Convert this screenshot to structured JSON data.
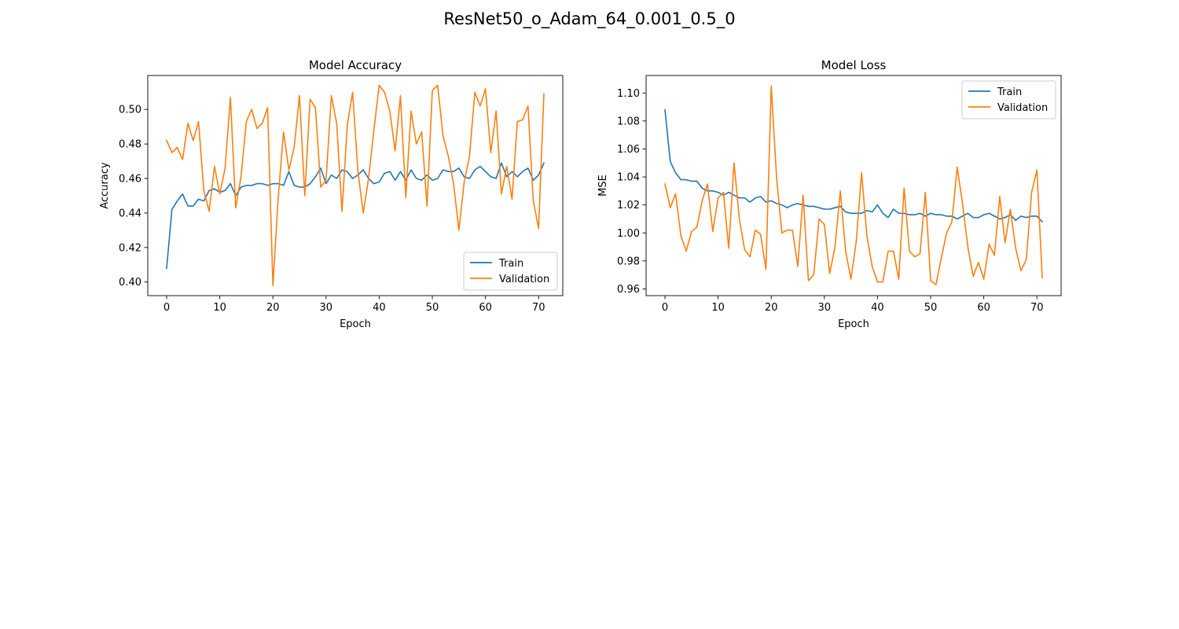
{
  "figure": {
    "title": "ResNet50_o_Adam_64_0.001_0.5_0"
  },
  "colors": {
    "train": "#1f77b4",
    "validation": "#ff7f0e"
  },
  "chart_data": [
    {
      "type": "line",
      "title": "Model Accuracy",
      "xlabel": "Epoch",
      "ylabel": "Accuracy",
      "xlim": [
        -3.55,
        74.55
      ],
      "ylim": [
        0.3921,
        0.5197
      ],
      "xticks": [
        0,
        10,
        20,
        30,
        40,
        50,
        60,
        70
      ],
      "yticks": [
        0.4,
        0.42,
        0.44,
        0.46,
        0.48,
        0.5
      ],
      "ytick_decimals": 2,
      "legend": "lower-right",
      "grid": false,
      "x": [
        0,
        1,
        2,
        3,
        4,
        5,
        6,
        7,
        8,
        9,
        10,
        11,
        12,
        13,
        14,
        15,
        16,
        17,
        18,
        19,
        20,
        21,
        22,
        23,
        24,
        25,
        26,
        27,
        28,
        29,
        30,
        31,
        32,
        33,
        34,
        35,
        36,
        37,
        38,
        39,
        40,
        41,
        42,
        43,
        44,
        45,
        46,
        47,
        48,
        49,
        50,
        51,
        52,
        53,
        54,
        55,
        56,
        57,
        58,
        59,
        60,
        61,
        62,
        63,
        64,
        65,
        66,
        67,
        68,
        69,
        70,
        71
      ],
      "series": [
        {
          "name": "Train",
          "color": "#1f77b4",
          "values": [
            0.408,
            0.442,
            0.447,
            0.451,
            0.444,
            0.444,
            0.448,
            0.447,
            0.453,
            0.454,
            0.452,
            0.453,
            0.457,
            0.45,
            0.455,
            0.456,
            0.456,
            0.457,
            0.457,
            0.456,
            0.457,
            0.457,
            0.456,
            0.464,
            0.456,
            0.455,
            0.455,
            0.457,
            0.461,
            0.466,
            0.457,
            0.462,
            0.46,
            0.465,
            0.464,
            0.46,
            0.462,
            0.465,
            0.46,
            0.457,
            0.458,
            0.463,
            0.464,
            0.459,
            0.464,
            0.459,
            0.465,
            0.46,
            0.459,
            0.462,
            0.459,
            0.46,
            0.465,
            0.464,
            0.464,
            0.466,
            0.461,
            0.46,
            0.465,
            0.467,
            0.464,
            0.461,
            0.46,
            0.469,
            0.461,
            0.464,
            0.461,
            0.464,
            0.466,
            0.459,
            0.462,
            0.469
          ]
        },
        {
          "name": "Validation",
          "color": "#ff7f0e",
          "values": [
            0.482,
            0.475,
            0.478,
            0.471,
            0.492,
            0.482,
            0.493,
            0.453,
            0.441,
            0.467,
            0.451,
            0.466,
            0.507,
            0.443,
            0.461,
            0.493,
            0.5,
            0.489,
            0.492,
            0.501,
            0.398,
            0.449,
            0.487,
            0.465,
            0.478,
            0.508,
            0.45,
            0.506,
            0.501,
            0.455,
            0.459,
            0.508,
            0.492,
            0.441,
            0.491,
            0.51,
            0.464,
            0.44,
            0.46,
            0.488,
            0.514,
            0.51,
            0.499,
            0.476,
            0.508,
            0.449,
            0.499,
            0.48,
            0.487,
            0.444,
            0.511,
            0.514,
            0.485,
            0.473,
            0.457,
            0.43,
            0.458,
            0.473,
            0.51,
            0.502,
            0.512,
            0.475,
            0.499,
            0.451,
            0.467,
            0.448,
            0.493,
            0.494,
            0.502,
            0.447,
            0.431,
            0.509
          ]
        }
      ]
    },
    {
      "type": "line",
      "title": "Model Loss",
      "xlabel": "Epoch",
      "ylabel": "MSE",
      "xlim": [
        -3.55,
        74.55
      ],
      "ylim": [
        0.9552,
        1.1125
      ],
      "xticks": [
        0,
        10,
        20,
        30,
        40,
        50,
        60,
        70
      ],
      "yticks": [
        0.96,
        0.98,
        1.0,
        1.02,
        1.04,
        1.06,
        1.08,
        1.1
      ],
      "ytick_decimals": 2,
      "legend": "upper-right",
      "grid": false,
      "x": [
        0,
        1,
        2,
        3,
        4,
        5,
        6,
        7,
        8,
        9,
        10,
        11,
        12,
        13,
        14,
        15,
        16,
        17,
        18,
        19,
        20,
        21,
        22,
        23,
        24,
        25,
        26,
        27,
        28,
        29,
        30,
        31,
        32,
        33,
        34,
        35,
        36,
        37,
        38,
        39,
        40,
        41,
        42,
        43,
        44,
        45,
        46,
        47,
        48,
        49,
        50,
        51,
        52,
        53,
        54,
        55,
        56,
        57,
        58,
        59,
        60,
        61,
        62,
        63,
        64,
        65,
        66,
        67,
        68,
        69,
        70,
        71
      ],
      "series": [
        {
          "name": "Train",
          "color": "#1f77b4",
          "values": [
            1.088,
            1.051,
            1.043,
            1.038,
            1.038,
            1.037,
            1.037,
            1.032,
            1.03,
            1.03,
            1.029,
            1.027,
            1.029,
            1.027,
            1.025,
            1.025,
            1.022,
            1.025,
            1.026,
            1.022,
            1.023,
            1.021,
            1.02,
            1.018,
            1.02,
            1.021,
            1.02,
            1.019,
            1.019,
            1.018,
            1.017,
            1.017,
            1.018,
            1.019,
            1.015,
            1.014,
            1.014,
            1.014,
            1.016,
            1.015,
            1.02,
            1.014,
            1.011,
            1.017,
            1.014,
            1.014,
            1.013,
            1.013,
            1.014,
            1.012,
            1.014,
            1.013,
            1.013,
            1.012,
            1.012,
            1.01,
            1.012,
            1.014,
            1.011,
            1.011,
            1.013,
            1.014,
            1.012,
            1.01,
            1.011,
            1.013,
            1.009,
            1.012,
            1.011,
            1.012,
            1.012,
            1.008
          ]
        },
        {
          "name": "Validation",
          "color": "#ff7f0e",
          "values": [
            1.035,
            1.018,
            1.028,
            0.998,
            0.987,
            1.001,
            1.004,
            1.023,
            1.035,
            1.001,
            1.025,
            1.029,
            0.989,
            1.05,
            1.01,
            0.988,
            0.983,
            1.002,
            0.999,
            0.974,
            1.105,
            1.04,
            1.0,
            1.002,
            1.002,
            0.976,
            1.027,
            0.966,
            0.97,
            1.01,
            1.006,
            0.971,
            0.99,
            1.03,
            0.987,
            0.967,
            0.994,
            1.043,
            0.998,
            0.976,
            0.965,
            0.965,
            0.987,
            0.987,
            0.967,
            1.032,
            0.987,
            0.983,
            0.985,
            1.029,
            0.966,
            0.963,
            0.982,
            1.0,
            1.008,
            1.047,
            1.021,
            0.99,
            0.969,
            0.979,
            0.967,
            0.992,
            0.984,
            1.026,
            0.993,
            1.017,
            0.989,
            0.973,
            0.981,
            1.029,
            1.045,
            0.968
          ]
        }
      ]
    }
  ]
}
